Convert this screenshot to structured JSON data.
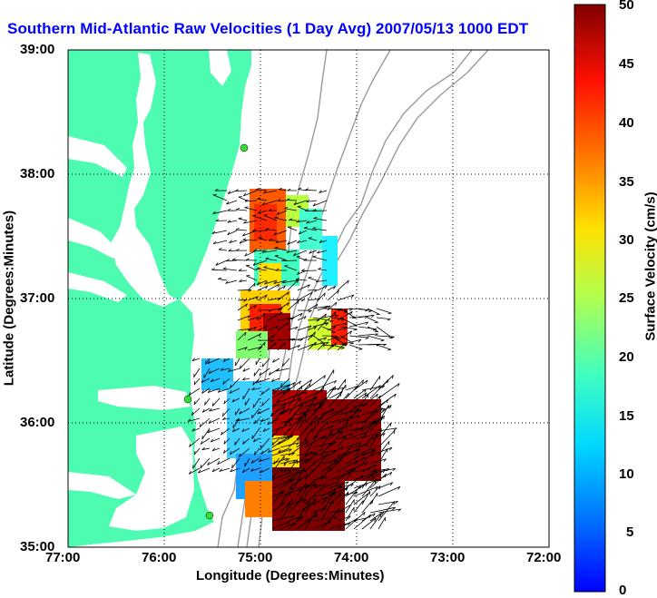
{
  "title": "Southern Mid-Atlantic Raw Velocities (1 Day Avg) 2007/05/13 1000 EDT",
  "x_axis": {
    "label": "Longitude (Degrees:Minutes)",
    "ticks": [
      "77:00",
      "76:00",
      "75:00",
      "74:00",
      "73:00",
      "72:00"
    ]
  },
  "y_axis": {
    "label": "Latitude (Degrees:Minutes)",
    "ticks": [
      "39:00",
      "38:00",
      "37:00",
      "36:00",
      "35:00"
    ]
  },
  "colorbar": {
    "label": "Surface Velocity (cm/s)",
    "ticks": [
      "50",
      "45",
      "40",
      "35",
      "30",
      "25",
      "20",
      "15",
      "10",
      "5",
      "0"
    ],
    "min": 0,
    "max": 50,
    "colormap": "jet"
  },
  "colors": {
    "land": "#4dfcb0",
    "title": "#0000ff",
    "bathymetry": "#9a9a9a",
    "stations": "#33dd33"
  },
  "map_extent": {
    "lon_min": -77,
    "lon_max": -72,
    "lat_min": 35,
    "lat_max": 39
  }
}
